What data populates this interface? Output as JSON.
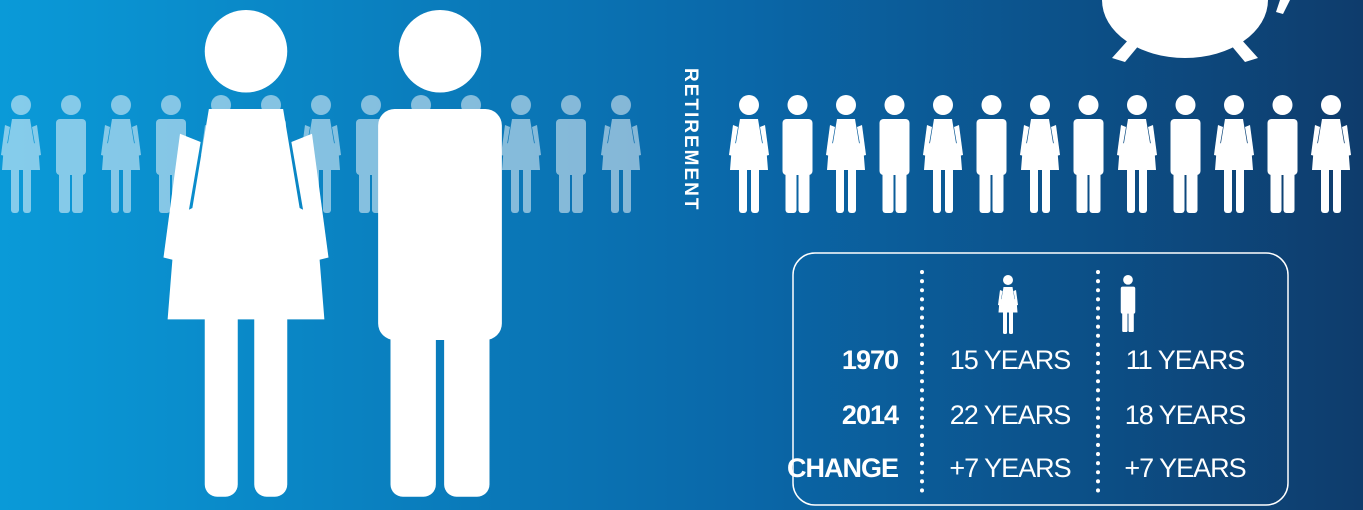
{
  "label": "RETIREMENT",
  "table": {
    "rows": [
      [
        "1970",
        "15 YEARS",
        "11 YEARS"
      ],
      [
        "2014",
        "22 YEARS",
        "18 YEARS"
      ],
      [
        "CHANGE",
        "+7 YEARS",
        "+7 YEARS"
      ]
    ]
  }
}
